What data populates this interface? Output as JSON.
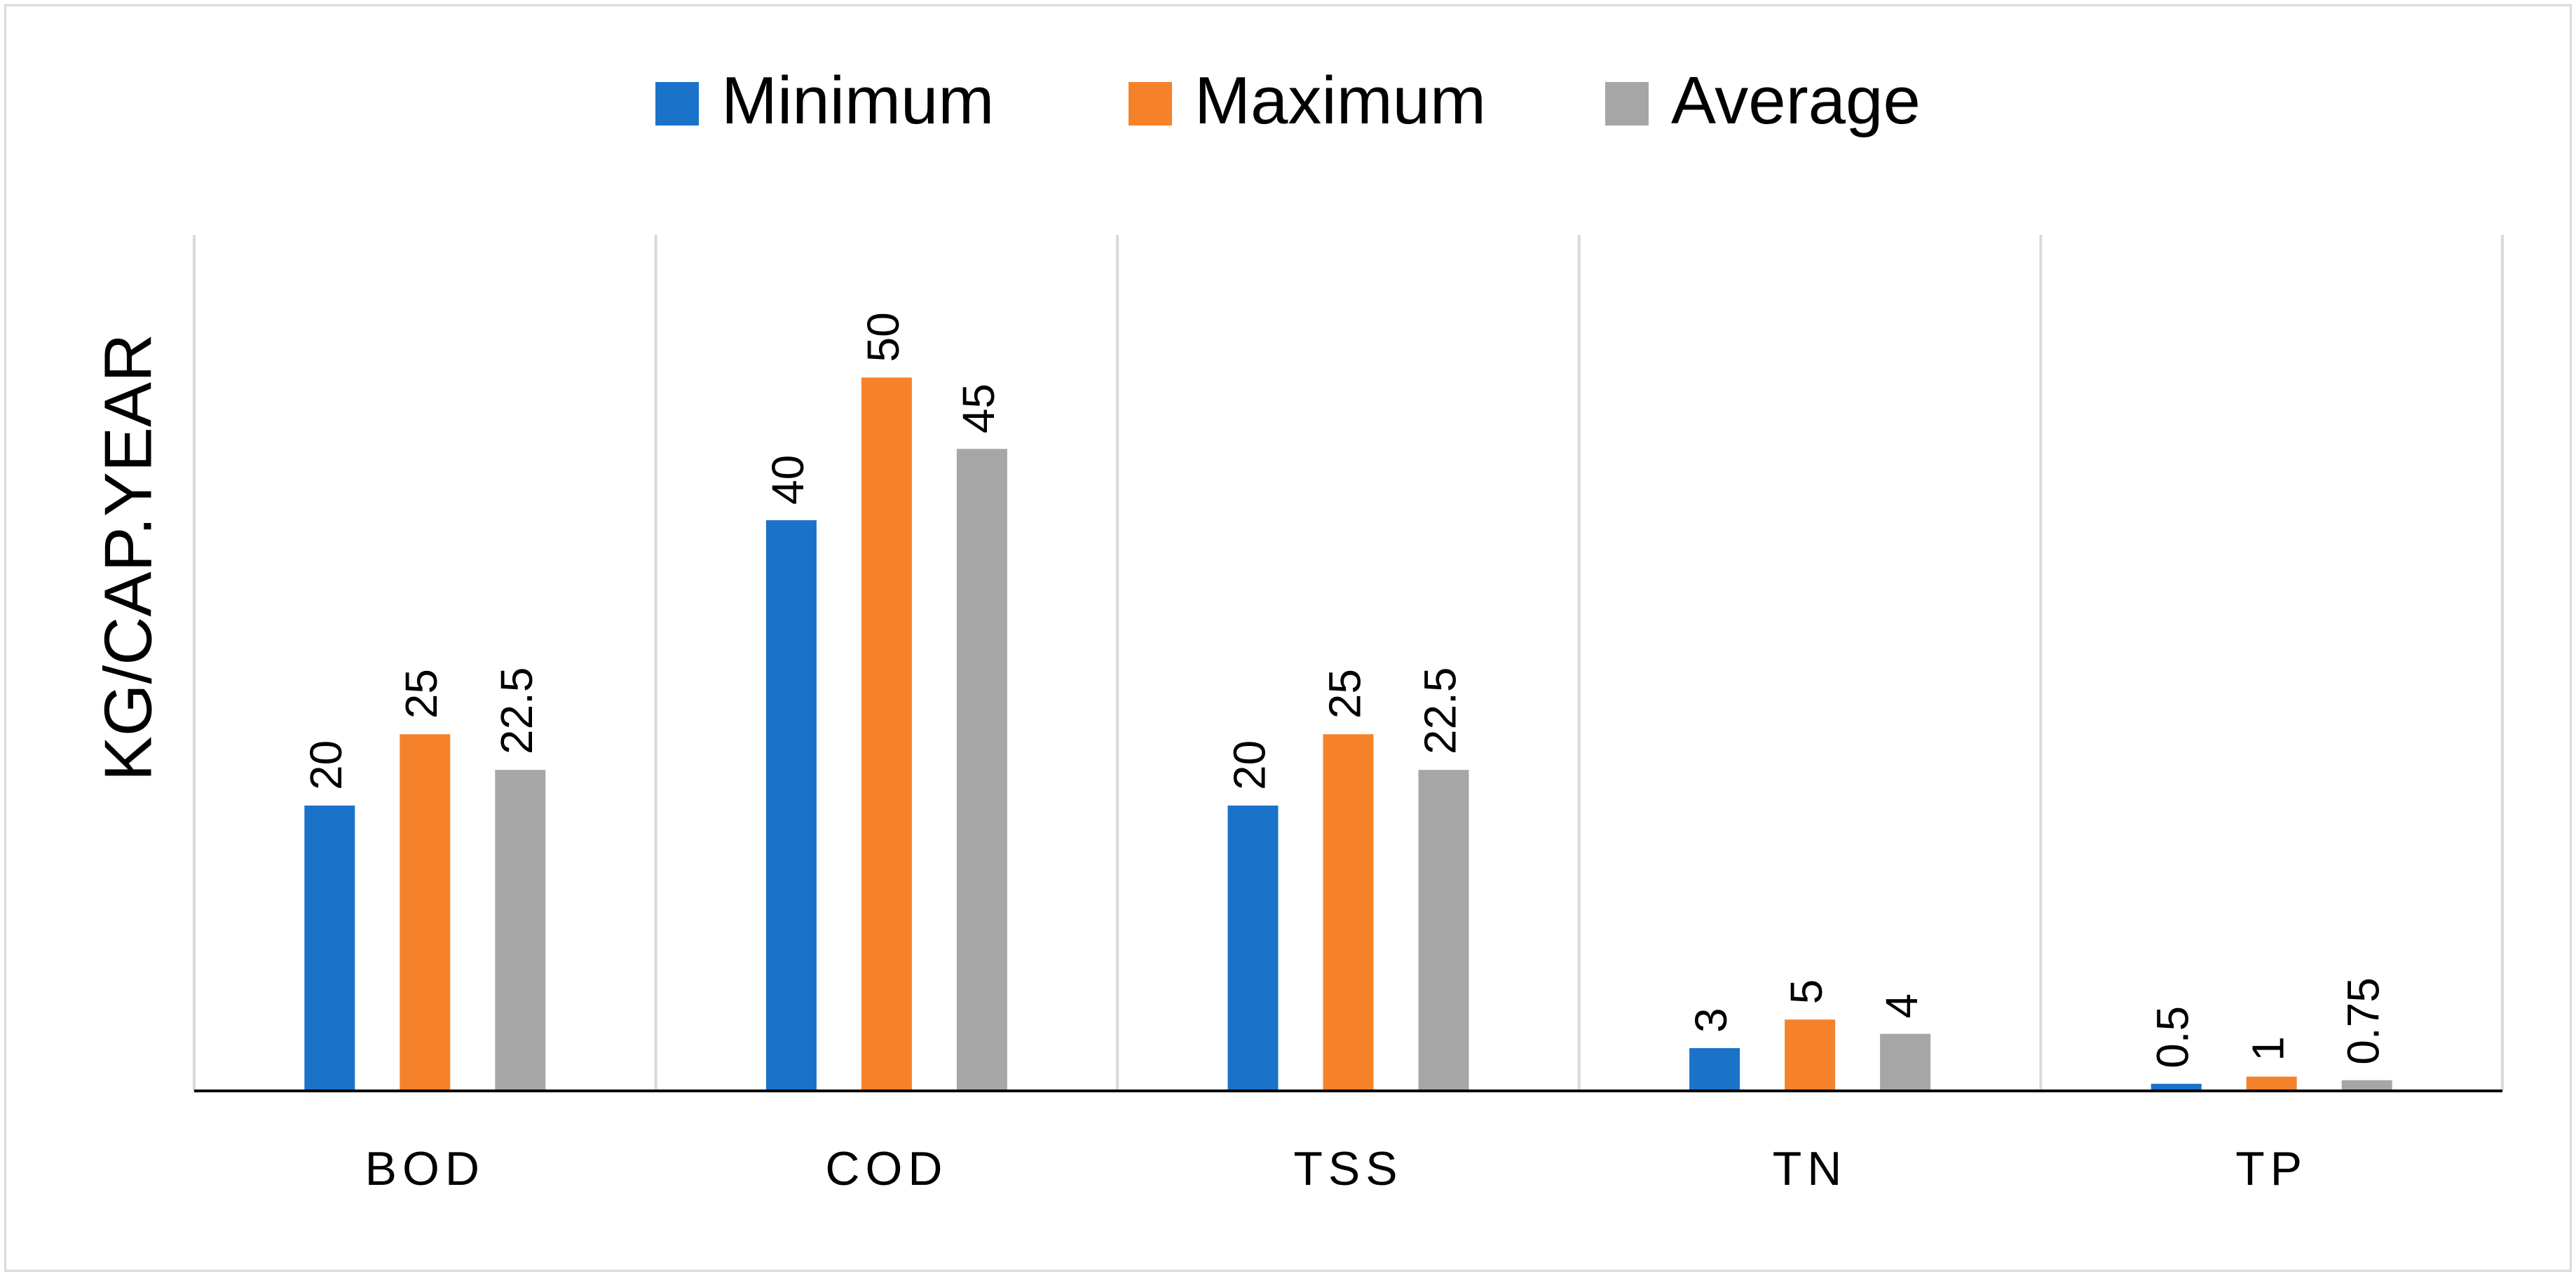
{
  "chart_data": {
    "type": "bar",
    "title": "",
    "xlabel": "",
    "ylabel": "KG/CAP.YEAR",
    "categories": [
      "BOD",
      "COD",
      "TSS",
      "TN",
      "TP"
    ],
    "series": [
      {
        "name": "Minimum",
        "color": "#1a73c9",
        "values": [
          20,
          40,
          20,
          3,
          0.5
        ],
        "labels": [
          "20",
          "40",
          "20",
          "3",
          "0.5"
        ]
      },
      {
        "name": "Maximum",
        "color": "#f5822a",
        "values": [
          25,
          50,
          25,
          5,
          1
        ],
        "labels": [
          "25",
          "50",
          "25",
          "5",
          "1"
        ]
      },
      {
        "name": "Average",
        "color": "#a6a6a6",
        "values": [
          22.5,
          45,
          22.5,
          4,
          0.75
        ],
        "labels": [
          "22.5",
          "45",
          "22.5",
          "4",
          "0.75"
        ]
      }
    ],
    "ylim": [
      0,
      60
    ],
    "grid": "vertical category separators",
    "legend_position": "top-center",
    "data_labels": "rotated above bars"
  }
}
